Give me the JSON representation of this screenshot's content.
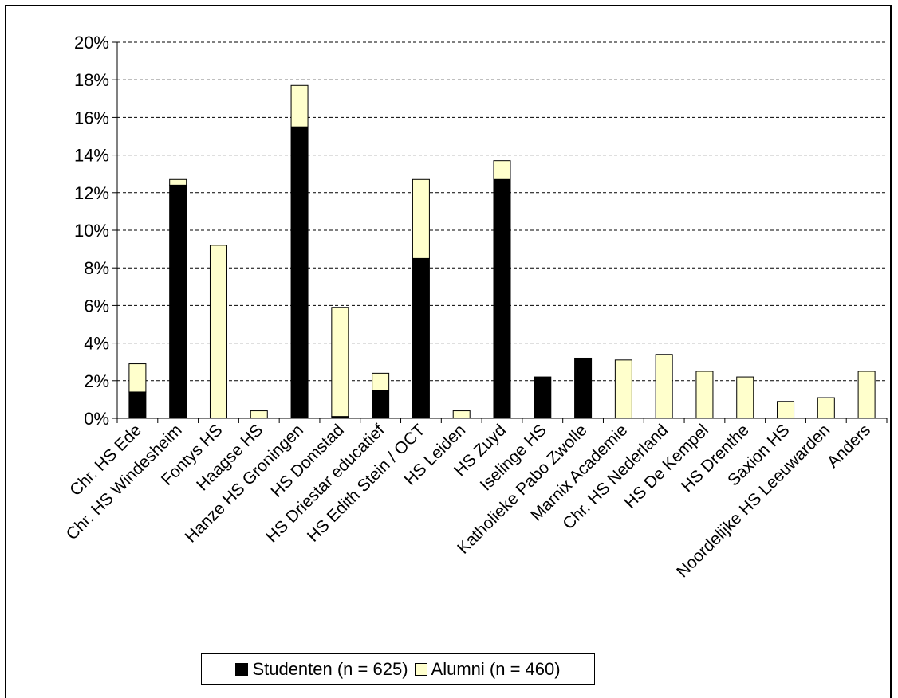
{
  "chart_data": {
    "type": "bar",
    "stacked": true,
    "categories": [
      "Chr. HS Ede",
      "Chr. HS Windesheim",
      "Fontys HS",
      "Haagse HS",
      "Hanze HS Groningen",
      "HS Domstad",
      "HS Driestar educatief",
      "HS Edith Stein / OCT",
      "HS Leiden",
      "HS Zuyd",
      "Iselinge HS",
      "Katholieke Pabo Zwolle",
      "Marnix Academie",
      "Chr. HS Nederland",
      "HS De Kempel",
      "HS Drenthe",
      "Saxion HS",
      "Noordelijke HS Leeuwarden",
      "Anders"
    ],
    "series": [
      {
        "name": "Studenten (n = 625)",
        "color": "#000000",
        "values": [
          1.4,
          12.4,
          0,
          0,
          15.5,
          0.1,
          1.5,
          8.5,
          0,
          12.7,
          2.2,
          3.2,
          0,
          0,
          0,
          0,
          0,
          0,
          0
        ]
      },
      {
        "name": "Alumni (n = 460)",
        "color": "#FFFFCC",
        "values": [
          1.5,
          0.3,
          9.2,
          0.4,
          2.2,
          5.8,
          0.9,
          4.2,
          0.4,
          1.0,
          0,
          0,
          3.1,
          3.4,
          2.5,
          2.2,
          0.9,
          1.1,
          2.5
        ]
      }
    ],
    "y_ticks": [
      "0%",
      "2%",
      "4%",
      "6%",
      "8%",
      "10%",
      "12%",
      "14%",
      "16%",
      "18%",
      "20%"
    ],
    "ylim": [
      0,
      20
    ],
    "grid": true,
    "legend_position": "bottom"
  }
}
